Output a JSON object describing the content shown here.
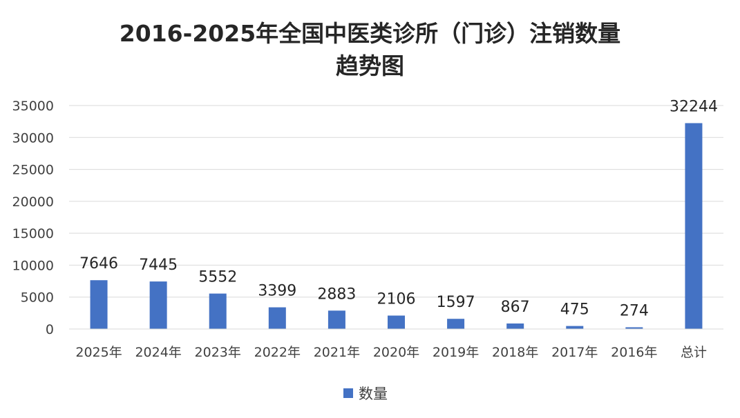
{
  "chart_data": {
    "type": "bar",
    "title_line1": "2016-2025年全国中医类诊所（门诊）注销数量",
    "title_line2": "趋势图",
    "categories": [
      "2025年",
      "2024年",
      "2023年",
      "2022年",
      "2021年",
      "2020年",
      "2019年",
      "2018年",
      "2017年",
      "2016年",
      "总计"
    ],
    "series": [
      {
        "name": "数量",
        "values": [
          7646,
          7445,
          5552,
          3399,
          2883,
          2106,
          1597,
          867,
          475,
          274,
          32244
        ],
        "color": "#4472C4"
      }
    ],
    "ylim": [
      0,
      35000
    ],
    "yticks": [
      0,
      5000,
      10000,
      15000,
      20000,
      25000,
      30000,
      35000
    ],
    "grid": true,
    "legend_position": "bottom",
    "xlabel": "",
    "ylabel": ""
  }
}
